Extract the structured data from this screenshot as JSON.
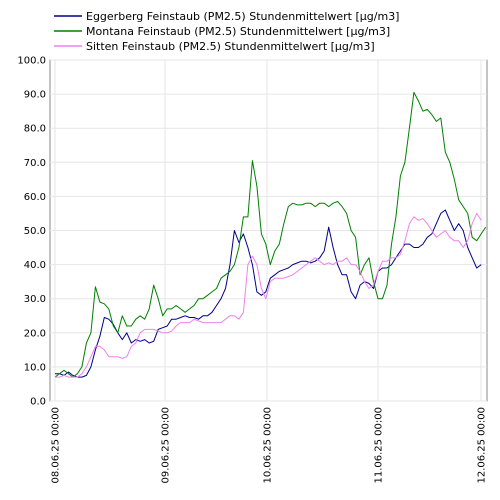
{
  "chart_data": {
    "type": "line",
    "xlabel": "",
    "ylabel": "",
    "ylim": [
      0,
      100
    ],
    "yticks": [
      "0.0",
      "10.0",
      "20.0",
      "30.0",
      "40.0",
      "50.0",
      "60.0",
      "70.0",
      "80.0",
      "90.0",
      "100.0"
    ],
    "xtick_labels": [
      "08.06.25 00:00",
      "09.06.25 00:00",
      "10.06.25 00:00",
      "11.06.25 00:00",
      "12.06.25 00:00"
    ],
    "grid": true,
    "legend_placement": "top",
    "series": [
      {
        "name": "Eggerberg Feinstaub (PM2.5) Stundenmittelwert [µg/m3]",
        "color": "#00008b",
        "values": [
          8,
          8,
          7.5,
          8.5,
          7.5,
          7,
          7,
          7.5,
          10,
          15,
          19,
          24.5,
          24,
          22.5,
          20,
          18,
          20,
          17,
          18,
          17.5,
          18,
          17,
          17.5,
          21,
          21.5,
          22,
          24,
          24,
          24.5,
          25,
          24.5,
          24.5,
          24,
          25,
          25,
          26,
          28,
          30,
          33,
          40,
          50,
          46.5,
          49,
          45,
          40,
          32,
          31,
          32,
          36,
          37,
          38,
          38.5,
          39,
          40,
          40.5,
          41,
          41,
          40.5,
          41,
          42,
          44,
          51,
          45,
          40,
          37,
          37,
          32,
          30,
          34,
          35,
          34.5,
          33,
          38,
          39,
          39,
          40,
          42,
          44,
          46,
          46,
          45,
          45,
          46,
          48,
          49,
          52,
          55,
          56,
          53,
          50,
          52,
          50,
          45,
          42,
          39,
          40
        ]
      },
      {
        "name": "Montana Feinstaub (PM2.5) Stundenmittelwert [µg/m3]",
        "color": "#008000",
        "values": [
          7,
          8,
          9,
          8,
          7,
          8,
          10,
          17,
          20,
          33.5,
          29,
          28.5,
          27,
          22,
          20,
          25,
          22,
          22,
          24,
          25,
          24,
          27,
          34,
          30,
          25,
          27,
          27,
          28,
          27,
          26,
          27,
          28,
          30,
          30,
          31,
          32,
          33,
          36,
          37,
          38,
          40,
          45,
          54,
          54,
          70.5,
          63,
          49,
          46,
          40,
          44,
          46,
          52,
          57,
          58,
          57.5,
          57.5,
          58,
          58,
          57,
          58,
          58,
          57,
          58,
          58.5,
          57,
          55,
          50,
          48,
          37,
          40,
          42,
          35,
          30,
          30,
          34,
          46,
          54,
          66,
          70,
          80,
          90.5,
          88,
          85,
          85.5,
          84,
          82,
          83,
          73,
          70,
          65,
          59,
          57,
          55,
          48,
          47,
          49,
          51
        ]
      },
      {
        "name": "Sitten Feinstaub (PM2.5) Stundenmittelwert [µg/m3]",
        "color": "#ee82ee",
        "values": [
          7,
          7,
          7.5,
          7,
          7,
          7,
          8,
          10,
          13,
          16,
          16,
          15,
          13,
          13,
          13,
          12.5,
          13,
          16,
          17,
          20,
          21,
          21,
          21,
          20.5,
          20,
          20,
          20.5,
          22,
          23,
          23,
          23,
          24,
          23.5,
          23,
          23,
          23,
          23,
          23,
          24,
          25,
          25,
          24,
          26,
          40,
          42.5,
          40,
          33,
          30,
          35,
          36,
          36,
          36,
          36.5,
          37,
          38,
          39,
          40,
          41,
          42,
          41,
          40,
          40.5,
          40,
          41,
          41,
          42,
          40,
          40,
          38,
          35,
          33,
          34,
          38,
          41,
          41,
          42,
          42,
          43,
          47,
          52,
          54,
          53,
          53.5,
          52,
          50,
          48,
          49,
          50,
          48,
          47,
          47,
          45,
          47,
          52,
          55,
          53
        ]
      }
    ]
  }
}
